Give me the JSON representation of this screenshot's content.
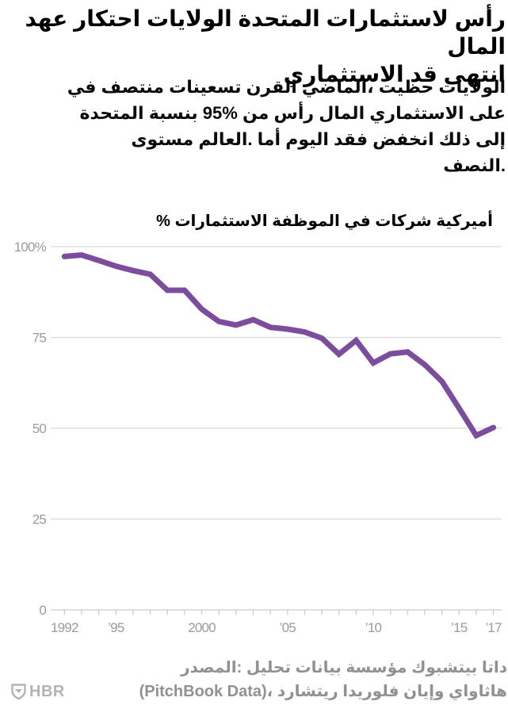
{
  "header": {
    "title_lines": [
      "عهد احتكار الولايات المتحدة لاستثمارات رأس المال",
      "الاستثماري قد انتهى"
    ],
    "subtitle_lines": [
      "في منتصف تسعينات القرن الماضي، حظيت الولايات",
      "المتحدة بنسبة 95% من رأس المال الاستثماري على",
      "مستوى العالم. أما اليوم فقد انخفض ذلك إلى",
      "النصف."
    ]
  },
  "chart_data": {
    "type": "line",
    "title": "% الاستثمارات الموظفة في شركات أميركية",
    "x": [
      1992,
      1993,
      1994,
      1995,
      1996,
      1997,
      1998,
      1999,
      2000,
      2001,
      2002,
      2003,
      2004,
      2005,
      2006,
      2007,
      2008,
      2009,
      2010,
      2011,
      2012,
      2013,
      2014,
      2015,
      2016,
      2017
    ],
    "values": [
      97.3,
      97.7,
      96.2,
      94.6,
      93.4,
      92.4,
      88,
      88,
      82.8,
      79.4,
      78.4,
      79.9,
      77.8,
      77.3,
      76.5,
      74.8,
      70.4,
      74.2,
      68,
      70.5,
      71,
      67.5,
      62.9,
      55.5,
      48,
      50.2
    ],
    "ylim": [
      0,
      100
    ],
    "yticks": {
      "values": [
        100,
        75,
        50,
        25,
        0
      ],
      "labels": [
        "100%",
        "75",
        "50",
        "25",
        "0"
      ]
    },
    "xticks": {
      "values": [
        1992,
        1995,
        2000,
        2005,
        2010,
        2015,
        2017
      ],
      "labels": [
        "1992",
        "’95",
        "2000",
        "’05",
        "’10",
        "’15",
        "’17"
      ]
    },
    "grid": "horizontal",
    "legend": "none",
    "colors": {
      "line": "#7c4d9c",
      "gridline": "#dadada",
      "axis_line": "#cccccc",
      "tick": "#cccccc",
      "axis_text": "#9b9b9b"
    }
  },
  "source": {
    "lines": [
      "المصدر: تحليل بيانات مؤسسة بيتشبوك داتا",
      "(PitchBook Data)، ريتشارد فلوريدا وإيان هاثاواي"
    ]
  },
  "footer": {
    "logo_text": "HBR",
    "logo_color": "#b3b3b3"
  }
}
